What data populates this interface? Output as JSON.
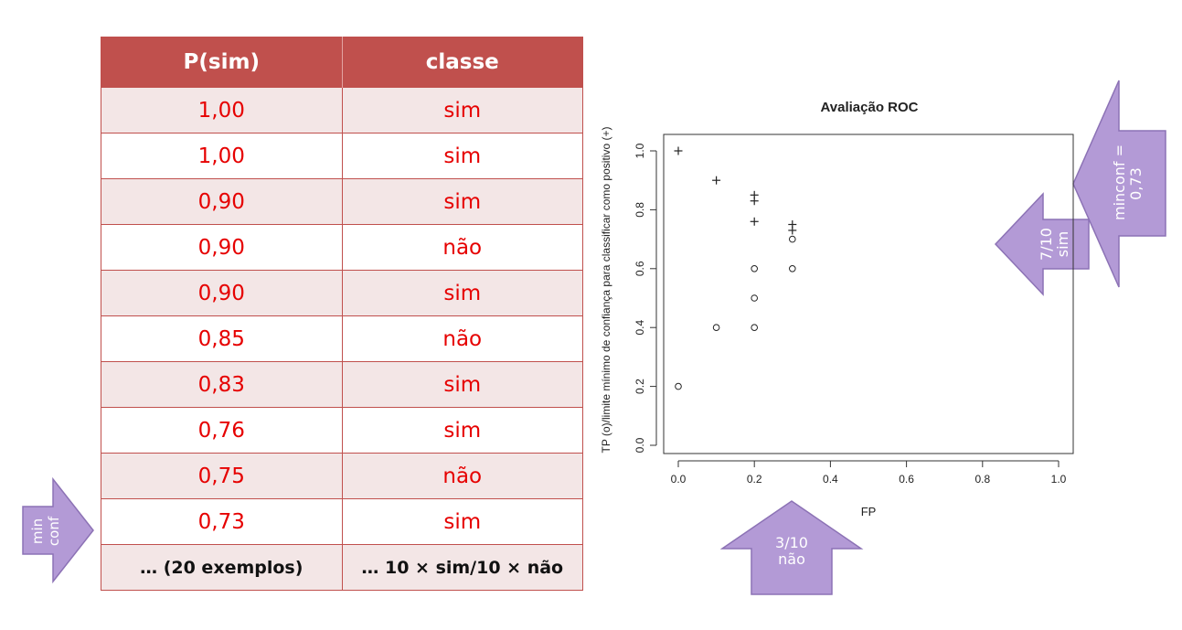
{
  "table": {
    "headers": [
      "P(sim)",
      "classe"
    ],
    "rows": [
      [
        "1,00",
        "sim"
      ],
      [
        "1,00",
        "sim"
      ],
      [
        "0,90",
        "sim"
      ],
      [
        "0,90",
        "não"
      ],
      [
        "0,90",
        "sim"
      ],
      [
        "0,85",
        "não"
      ],
      [
        "0,83",
        "sim"
      ],
      [
        "0,76",
        "sim"
      ],
      [
        "0,75",
        "não"
      ],
      [
        "0,73",
        "sim"
      ]
    ],
    "summary": [
      "… (20 exemplos)",
      "… 10 × sim/10 × não"
    ]
  },
  "arrows": {
    "min_conf": {
      "line1": "min",
      "line2": "conf"
    },
    "tp": {
      "line1": "7/10",
      "line2": "sim"
    },
    "minconf": {
      "line1": "minconf =",
      "line2": "0,73"
    },
    "fp": {
      "line1": "3/10",
      "line2": "não"
    }
  },
  "colors": {
    "header": "#c0504d",
    "value_text": "#e60000",
    "row_shade": "#f3e6e6",
    "arrow_fill": "#b39ad6"
  },
  "chart_data": {
    "type": "scatter",
    "title": "Avaliação ROC",
    "xlabel": "FP",
    "ylabel": "TP (o)/limite mínimo de confiança para classificar como positivo (+)",
    "xlim": [
      0,
      1
    ],
    "ylim": [
      0,
      1
    ],
    "xticks": [
      "0.0",
      "0.2",
      "0.4",
      "0.6",
      "0.8",
      "1.0"
    ],
    "yticks": [
      "0.0",
      "0.2",
      "0.4",
      "0.6",
      "0.8",
      "1.0"
    ],
    "grid": false,
    "series": [
      {
        "marker": "circle",
        "x": [
          0.0,
          0.1,
          0.2,
          0.2,
          0.2,
          0.3,
          0.3
        ],
        "y": [
          0.2,
          0.4,
          0.4,
          0.5,
          0.6,
          0.6,
          0.7
        ]
      },
      {
        "marker": "plus",
        "x": [
          0.0,
          0.1,
          0.2,
          0.2,
          0.2,
          0.3,
          0.3
        ],
        "y": [
          1.0,
          0.9,
          0.85,
          0.83,
          0.76,
          0.75,
          0.73
        ]
      }
    ]
  }
}
